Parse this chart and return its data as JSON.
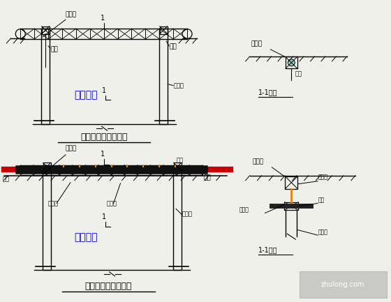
{
  "bg_color": "#f0f0eb",
  "line_color": "#000000",
  "blue_text": "#0000cc",
  "orange_color": "#e8820a",
  "red_color": "#cc0000",
  "title1": "方案一：管道悬吊图",
  "title2": "方案二：管道悬吊图",
  "label_junliang": "军位梁",
  "label_guandao": "管道",
  "label_dunliang": "盾梁",
  "label_zuankongzhu": "钻孔柱",
  "label_zhutijikeng": "主体基坑",
  "label_11": "1-1剖面",
  "label_lumian": "路面",
  "label_gangdiaogua": "钢吊箍",
  "label_gangzhihe": "钢制盒",
  "label_gangbanhe": "钢板盒"
}
